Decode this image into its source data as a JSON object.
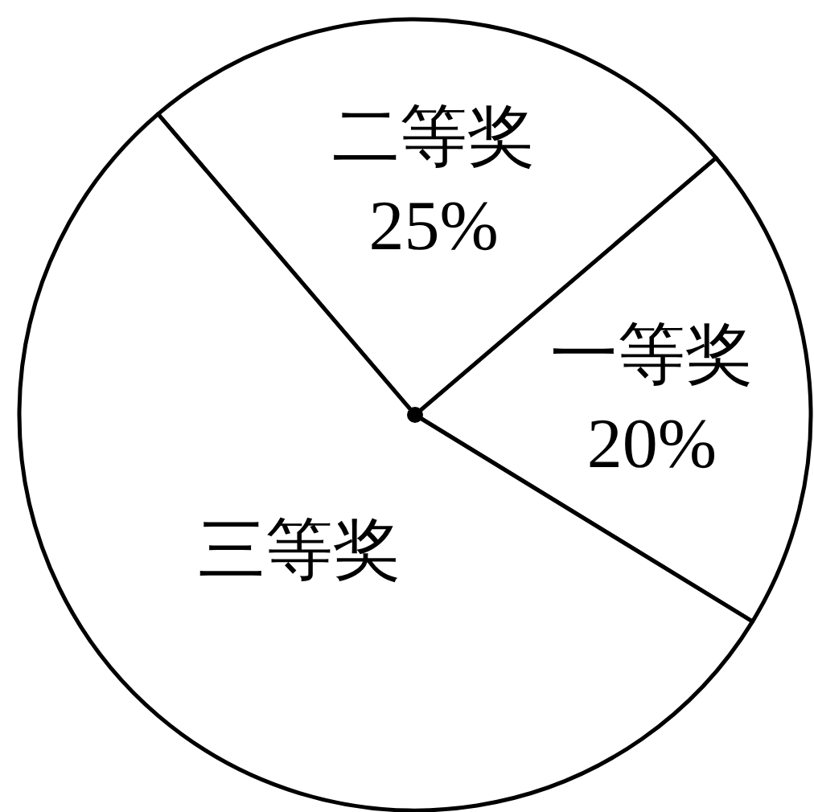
{
  "chart_data": {
    "type": "pie",
    "categories": [
      "一等奖",
      "二等奖",
      "三等奖"
    ],
    "values": [
      20,
      25,
      55
    ],
    "value_labels": [
      "20%",
      "25%",
      null
    ],
    "colors": [
      "#ffffff",
      "#ffffff",
      "#ffffff"
    ]
  }
}
